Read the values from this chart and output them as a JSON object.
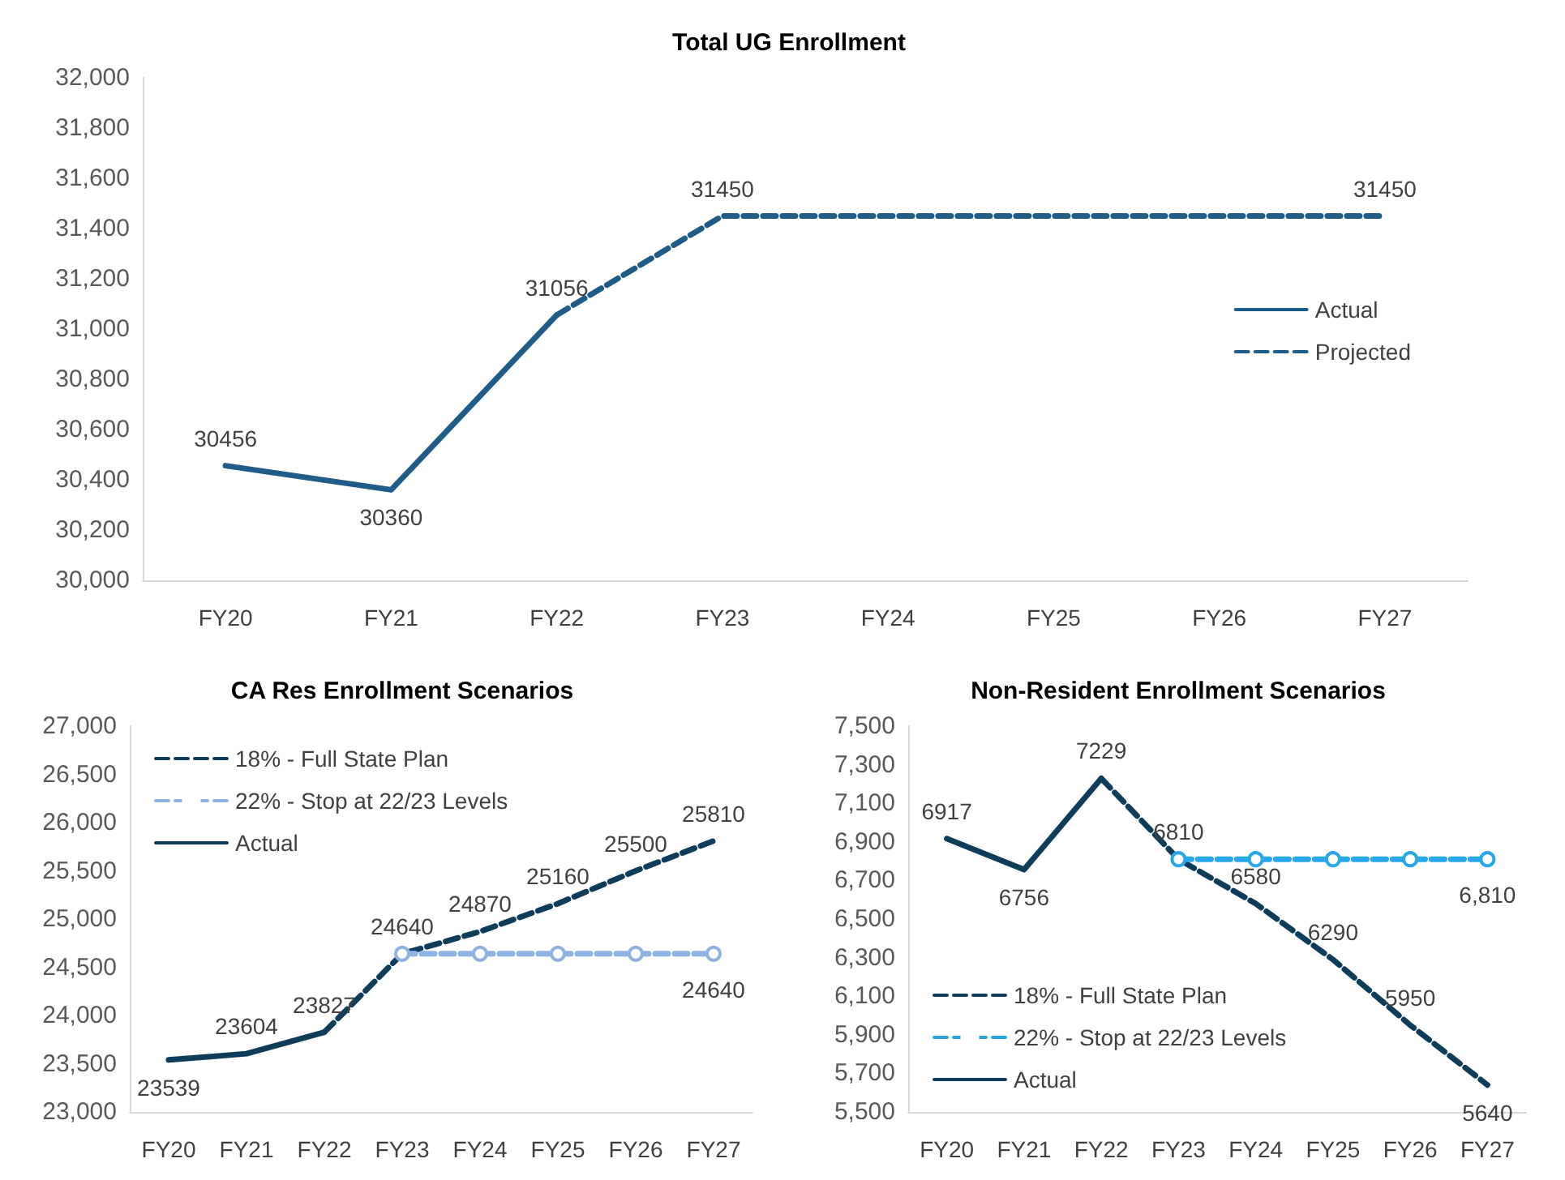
{
  "chart_data": [
    {
      "type": "line",
      "title": "Total UG Enrollment",
      "categories": [
        "FY20",
        "FY21",
        "FY22",
        "FY23",
        "FY24",
        "FY25",
        "FY26",
        "FY27"
      ],
      "ylim": [
        30000,
        32000
      ],
      "yticks": [
        {
          "value": 30000,
          "label": "30,000"
        },
        {
          "value": 30200,
          "label": "30,200"
        },
        {
          "value": 30400,
          "label": "30,400"
        },
        {
          "value": 30600,
          "label": "30,600"
        },
        {
          "value": 30800,
          "label": "30,800"
        },
        {
          "value": 31000,
          "label": "31,000"
        },
        {
          "value": 31200,
          "label": "31,200"
        },
        {
          "value": 31400,
          "label": "31,400"
        },
        {
          "value": 31600,
          "label": "31,600"
        },
        {
          "value": 31800,
          "label": "31,800"
        },
        {
          "value": 32000,
          "label": "32,000"
        }
      ],
      "grid": false,
      "legend": "right",
      "series": [
        {
          "name": "Actual",
          "color": "#1f5c87",
          "line_style": "solid",
          "marker": "none",
          "values": [
            30456,
            30360,
            31056,
            null,
            null,
            null,
            null,
            null
          ],
          "value_labels": [
            "30456",
            "30360",
            "31056",
            null,
            null,
            null,
            null,
            null
          ]
        },
        {
          "name": "Projected",
          "color": "#1f5c87",
          "line_style": "dashed",
          "marker": "none",
          "values": [
            null,
            null,
            31056,
            31450,
            31450,
            31450,
            31450,
            31450
          ],
          "value_labels": [
            null,
            null,
            null,
            "31450",
            null,
            null,
            null,
            "31450"
          ]
        }
      ]
    },
    {
      "type": "line",
      "title": "CA Res Enrollment Scenarios",
      "categories": [
        "FY20",
        "FY21",
        "FY22",
        "FY23",
        "FY24",
        "FY25",
        "FY26",
        "FY27"
      ],
      "ylim": [
        23000,
        27000
      ],
      "yticks": [
        {
          "value": 23000,
          "label": "23,000"
        },
        {
          "value": 23500,
          "label": "23,500"
        },
        {
          "value": 24000,
          "label": "24,000"
        },
        {
          "value": 24500,
          "label": "24,500"
        },
        {
          "value": 25000,
          "label": "25,000"
        },
        {
          "value": 25500,
          "label": "25,500"
        },
        {
          "value": 26000,
          "label": "26,000"
        },
        {
          "value": 26500,
          "label": "26,500"
        },
        {
          "value": 27000,
          "label": "27,000"
        }
      ],
      "grid": false,
      "legend": "top left",
      "series": [
        {
          "name": "18% - Full State Plan",
          "color": "#0e3d5c",
          "line_style": "dashed",
          "marker": "none",
          "values": [
            null,
            null,
            23827,
            24640,
            24870,
            25160,
            25500,
            25810
          ],
          "value_labels": [
            null,
            null,
            null,
            "24640",
            "24870",
            "25160",
            "25500",
            "25810"
          ]
        },
        {
          "name": "22% - Stop at 22/23 Levels",
          "color": "#8db4e2",
          "line_style": "dashed",
          "marker": "circle",
          "values": [
            null,
            null,
            null,
            24640,
            24640,
            24640,
            24640,
            24640
          ],
          "value_labels": [
            null,
            null,
            null,
            null,
            null,
            null,
            null,
            "24640"
          ]
        },
        {
          "name": "Actual",
          "color": "#0e3d5c",
          "line_style": "solid",
          "marker": "none",
          "values": [
            23539,
            23604,
            23827,
            null,
            null,
            null,
            null,
            null
          ],
          "value_labels": [
            "23539",
            "23604",
            "23827",
            null,
            null,
            null,
            null,
            null
          ]
        }
      ]
    },
    {
      "type": "line",
      "title": "Non-Resident Enrollment Scenarios",
      "categories": [
        "FY20",
        "FY21",
        "FY22",
        "FY23",
        "FY24",
        "FY25",
        "FY26",
        "FY27"
      ],
      "ylim": [
        5500,
        7500
      ],
      "yticks": [
        {
          "value": 5500,
          "label": "5,500"
        },
        {
          "value": 5700,
          "label": "5,700"
        },
        {
          "value": 5900,
          "label": "5,900"
        },
        {
          "value": 6100,
          "label": "6,100"
        },
        {
          "value": 6300,
          "label": "6,300"
        },
        {
          "value": 6500,
          "label": "6,500"
        },
        {
          "value": 6700,
          "label": "6,700"
        },
        {
          "value": 6900,
          "label": "6,900"
        },
        {
          "value": 7100,
          "label": "7,100"
        },
        {
          "value": 7300,
          "label": "7,300"
        },
        {
          "value": 7500,
          "label": "7,500"
        }
      ],
      "grid": false,
      "legend": "bottom left",
      "series": [
        {
          "name": "18% - Full State Plan",
          "color": "#0e3d5c",
          "line_style": "dashed",
          "marker": "none",
          "values": [
            null,
            null,
            7229,
            6810,
            6580,
            6290,
            5950,
            5640
          ],
          "value_labels": [
            null,
            null,
            null,
            "6810",
            "6580",
            "6290",
            "5950",
            "5640"
          ]
        },
        {
          "name": "22% - Stop at 22/23 Levels",
          "color": "#29a8e8",
          "line_style": "dashed",
          "marker": "circle",
          "values": [
            null,
            null,
            null,
            6810,
            6810,
            6810,
            6810,
            6810
          ],
          "value_labels": [
            null,
            null,
            null,
            null,
            null,
            null,
            null,
            "6,810"
          ]
        },
        {
          "name": "Actual",
          "color": "#0e3d5c",
          "line_style": "solid",
          "marker": "none",
          "values": [
            6917,
            6756,
            7229,
            null,
            null,
            null,
            null,
            null
          ],
          "value_labels": [
            "6917",
            "6756",
            "7229",
            null,
            null,
            null,
            null,
            null
          ]
        }
      ]
    }
  ]
}
